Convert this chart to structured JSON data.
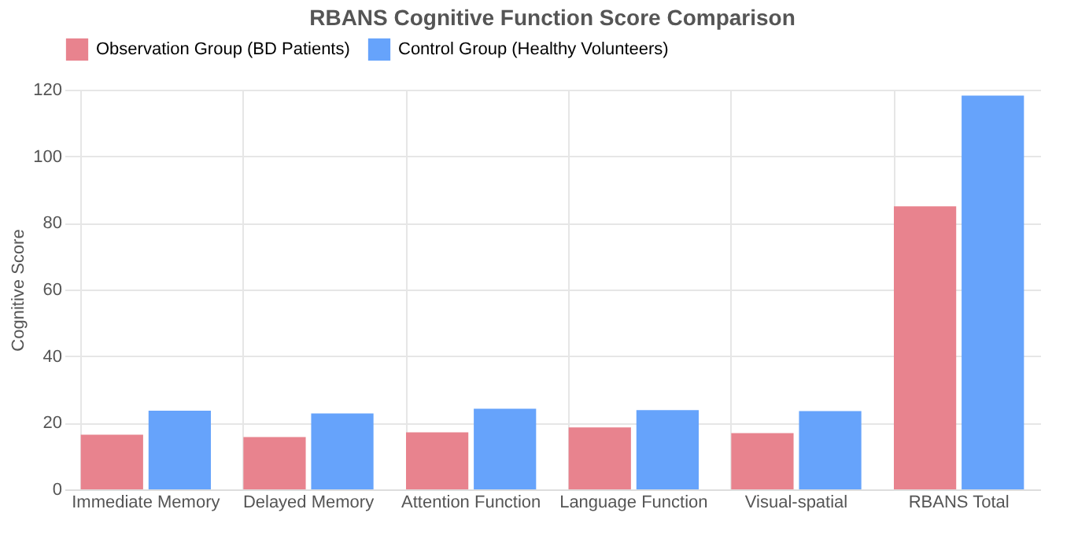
{
  "chart_data": {
    "type": "bar",
    "title": "RBANS Cognitive Function Score Comparison",
    "ylabel": "Cognitive Score",
    "categories": [
      "Immediate Memory",
      "Delayed Memory",
      "Attention Function",
      "Language Function",
      "Visual-spatial",
      "RBANS Total"
    ],
    "series": [
      {
        "name": "Observation Group (BD Patients)",
        "color": "#e8838e",
        "values": [
          16.4,
          15.7,
          17.1,
          18.6,
          16.9,
          85.0
        ]
      },
      {
        "name": "Control Group (Healthy Volunteers)",
        "color": "#66a3fb",
        "values": [
          23.6,
          22.8,
          24.2,
          23.8,
          23.5,
          118.2
        ]
      }
    ],
    "ylim": [
      0,
      120
    ],
    "yticks": [
      0,
      20,
      40,
      60,
      80,
      100,
      120
    ],
    "grid": true,
    "legend": "top"
  }
}
